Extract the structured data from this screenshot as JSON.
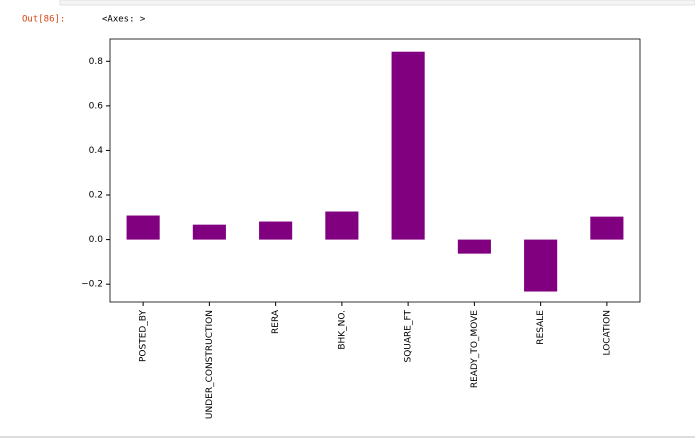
{
  "prompt": "Out[86]:",
  "output": "<Axes: >",
  "chart_data": {
    "type": "bar",
    "categories": [
      "POSTED_BY",
      "UNDER_CONSTRUCTION",
      "RERA",
      "BHK_NO.",
      "SQUARE_FT",
      "READY_TO_MOVE",
      "RESALE",
      "LOCATION"
    ],
    "values": [
      0.108,
      0.067,
      0.081,
      0.126,
      0.843,
      -0.063,
      -0.233,
      0.103
    ],
    "color": "#800080",
    "ylim": [
      -0.28,
      0.9
    ],
    "yticks": [
      {
        "value": -0.2,
        "label": "−0.2"
      },
      {
        "value": 0,
        "label": "0.0"
      },
      0.2,
      0.4,
      0.6,
      0.8
    ],
    "grid": false
  }
}
